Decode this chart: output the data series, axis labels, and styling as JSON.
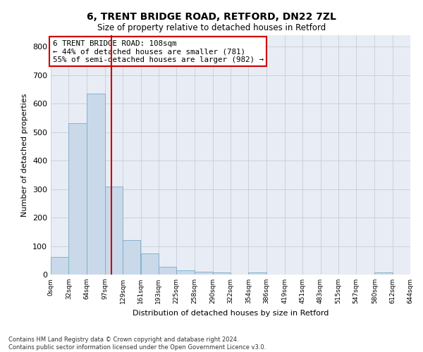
{
  "title1": "6, TRENT BRIDGE ROAD, RETFORD, DN22 7ZL",
  "title2": "Size of property relative to detached houses in Retford",
  "xlabel": "Distribution of detached houses by size in Retford",
  "ylabel": "Number of detached properties",
  "footnote": "Contains HM Land Registry data © Crown copyright and database right 2024.\nContains public sector information licensed under the Open Government Licence v3.0.",
  "bin_edges": [
    0,
    32,
    64,
    97,
    129,
    161,
    193,
    225,
    258,
    290,
    322,
    354,
    386,
    419,
    451,
    483,
    515,
    547,
    580,
    612,
    644
  ],
  "bar_heights": [
    63,
    530,
    635,
    310,
    120,
    75,
    28,
    14,
    10,
    8,
    0,
    7,
    0,
    0,
    0,
    0,
    0,
    0,
    7,
    0
  ],
  "bar_color": "#c9d9ea",
  "bar_edgecolor": "#7aaac8",
  "grid_color": "#c8ccd8",
  "property_size": 108,
  "property_line_color": "#cc0000",
  "annotation_text": "6 TRENT BRIDGE ROAD: 108sqm\n← 44% of detached houses are smaller (781)\n55% of semi-detached houses are larger (982) →",
  "annotation_box_color": "#cc0000",
  "ylim": [
    0,
    840
  ],
  "yticks": [
    0,
    100,
    200,
    300,
    400,
    500,
    600,
    700,
    800
  ],
  "background_color": "#e8ecf4",
  "tick_labels": [
    "0sqm",
    "32sqm",
    "64sqm",
    "97sqm",
    "129sqm",
    "161sqm",
    "193sqm",
    "225sqm",
    "258sqm",
    "290sqm",
    "322sqm",
    "354sqm",
    "386sqm",
    "419sqm",
    "451sqm",
    "483sqm",
    "515sqm",
    "547sqm",
    "580sqm",
    "612sqm",
    "644sqm"
  ]
}
